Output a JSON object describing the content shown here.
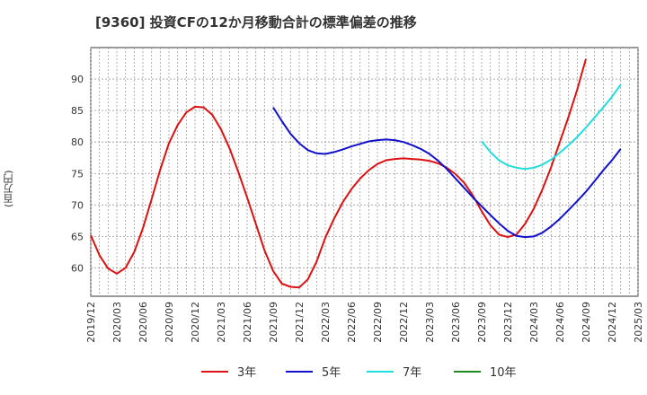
{
  "chart_data": {
    "type": "line",
    "title": "[9360]  投資CFの12か月移動合計の標準偏差の推移",
    "ylabel": "(百万円)",
    "xlabel": "",
    "ylim": [
      55.5,
      95
    ],
    "yticks": [
      60,
      65,
      70,
      75,
      80,
      85,
      90
    ],
    "xlim": [
      "2019-12",
      "2025-03"
    ],
    "xticks": [
      "2019/12",
      "2020/03",
      "2020/06",
      "2020/09",
      "2020/12",
      "2021/03",
      "2021/06",
      "2021/09",
      "2021/12",
      "2022/03",
      "2022/06",
      "2022/09",
      "2022/12",
      "2023/03",
      "2023/06",
      "2023/09",
      "2023/12",
      "2024/03",
      "2024/06",
      "2024/09",
      "2024/12",
      "2025/03"
    ],
    "grid": true,
    "legend_position": "bottom",
    "series": [
      {
        "name": "3年",
        "color": "#dd1111",
        "points": [
          [
            "2019-12",
            65.2
          ],
          [
            "2020-01",
            62.0
          ],
          [
            "2020-02",
            59.9
          ],
          [
            "2020-03",
            59.1
          ],
          [
            "2020-04",
            60.0
          ],
          [
            "2020-05",
            62.5
          ],
          [
            "2020-06",
            66.3
          ],
          [
            "2020-07",
            70.9
          ],
          [
            "2020-08",
            75.6
          ],
          [
            "2020-09",
            79.8
          ],
          [
            "2020-10",
            82.7
          ],
          [
            "2020-11",
            84.7
          ],
          [
            "2020-12",
            85.6
          ],
          [
            "2021-01",
            85.5
          ],
          [
            "2021-02",
            84.3
          ],
          [
            "2021-03",
            82.0
          ],
          [
            "2021-04",
            78.9
          ],
          [
            "2021-05",
            75.2
          ],
          [
            "2021-06",
            71.2
          ],
          [
            "2021-07",
            67.0
          ],
          [
            "2021-08",
            62.8
          ],
          [
            "2021-09",
            59.5
          ],
          [
            "2021-10",
            57.5
          ],
          [
            "2021-11",
            57.0
          ],
          [
            "2021-12",
            56.9
          ],
          [
            "2022-01",
            58.2
          ],
          [
            "2022-02",
            61.0
          ],
          [
            "2022-03",
            64.8
          ],
          [
            "2022-04",
            67.8
          ],
          [
            "2022-05",
            70.4
          ],
          [
            "2022-06",
            72.5
          ],
          [
            "2022-07",
            74.2
          ],
          [
            "2022-08",
            75.5
          ],
          [
            "2022-09",
            76.5
          ],
          [
            "2022-10",
            77.1
          ],
          [
            "2022-11",
            77.3
          ],
          [
            "2022-12",
            77.4
          ],
          [
            "2023-01",
            77.3
          ],
          [
            "2023-02",
            77.2
          ],
          [
            "2023-03",
            77.0
          ],
          [
            "2023-04",
            76.6
          ],
          [
            "2023-05",
            75.9
          ],
          [
            "2023-06",
            74.9
          ],
          [
            "2023-07",
            73.5
          ],
          [
            "2023-08",
            71.5
          ],
          [
            "2023-09",
            69.0
          ],
          [
            "2023-10",
            66.8
          ],
          [
            "2023-11",
            65.3
          ],
          [
            "2023-12",
            64.9
          ],
          [
            "2024-01",
            65.3
          ],
          [
            "2024-02",
            67.0
          ],
          [
            "2024-03",
            69.4
          ],
          [
            "2024-04",
            72.5
          ],
          [
            "2024-05",
            76.0
          ],
          [
            "2024-06",
            80.0
          ],
          [
            "2024-07",
            84.0
          ],
          [
            "2024-08",
            88.3
          ],
          [
            "2024-09",
            93.2
          ]
        ]
      },
      {
        "name": "5年",
        "color": "#1111cc",
        "points": [
          [
            "2021-09",
            85.5
          ],
          [
            "2021-10",
            83.3
          ],
          [
            "2021-11",
            81.3
          ],
          [
            "2021-12",
            79.8
          ],
          [
            "2022-01",
            78.7
          ],
          [
            "2022-02",
            78.2
          ],
          [
            "2022-03",
            78.1
          ],
          [
            "2022-04",
            78.4
          ],
          [
            "2022-05",
            78.8
          ],
          [
            "2022-06",
            79.3
          ],
          [
            "2022-07",
            79.7
          ],
          [
            "2022-08",
            80.1
          ],
          [
            "2022-09",
            80.3
          ],
          [
            "2022-10",
            80.4
          ],
          [
            "2022-11",
            80.3
          ],
          [
            "2022-12",
            80.0
          ],
          [
            "2023-01",
            79.5
          ],
          [
            "2023-02",
            78.9
          ],
          [
            "2023-03",
            78.1
          ],
          [
            "2023-04",
            77.0
          ],
          [
            "2023-05",
            75.7
          ],
          [
            "2023-06",
            74.2
          ],
          [
            "2023-07",
            72.7
          ],
          [
            "2023-08",
            71.2
          ],
          [
            "2023-09",
            69.8
          ],
          [
            "2023-10",
            68.4
          ],
          [
            "2023-11",
            67.1
          ],
          [
            "2023-12",
            65.9
          ],
          [
            "2024-01",
            65.1
          ],
          [
            "2024-02",
            64.9
          ],
          [
            "2024-03",
            65.0
          ],
          [
            "2024-04",
            65.6
          ],
          [
            "2024-05",
            66.6
          ],
          [
            "2024-06",
            67.8
          ],
          [
            "2024-07",
            69.2
          ],
          [
            "2024-08",
            70.6
          ],
          [
            "2024-09",
            72.1
          ],
          [
            "2024-10",
            73.8
          ],
          [
            "2024-11",
            75.5
          ],
          [
            "2024-12",
            77.1
          ],
          [
            "2025-01",
            78.9
          ]
        ]
      },
      {
        "name": "7年",
        "color": "#22dddd",
        "points": [
          [
            "2023-09",
            80.1
          ],
          [
            "2023-10",
            78.4
          ],
          [
            "2023-11",
            77.1
          ],
          [
            "2023-12",
            76.3
          ],
          [
            "2024-01",
            75.9
          ],
          [
            "2024-02",
            75.7
          ],
          [
            "2024-03",
            75.9
          ],
          [
            "2024-04",
            76.4
          ],
          [
            "2024-05",
            77.2
          ],
          [
            "2024-06",
            78.3
          ],
          [
            "2024-07",
            79.5
          ],
          [
            "2024-08",
            80.8
          ],
          [
            "2024-09",
            82.3
          ],
          [
            "2024-10",
            83.9
          ],
          [
            "2024-11",
            85.5
          ],
          [
            "2024-12",
            87.2
          ],
          [
            "2025-01",
            89.1
          ]
        ]
      },
      {
        "name": "10年",
        "color": "#228822",
        "points": []
      }
    ]
  }
}
